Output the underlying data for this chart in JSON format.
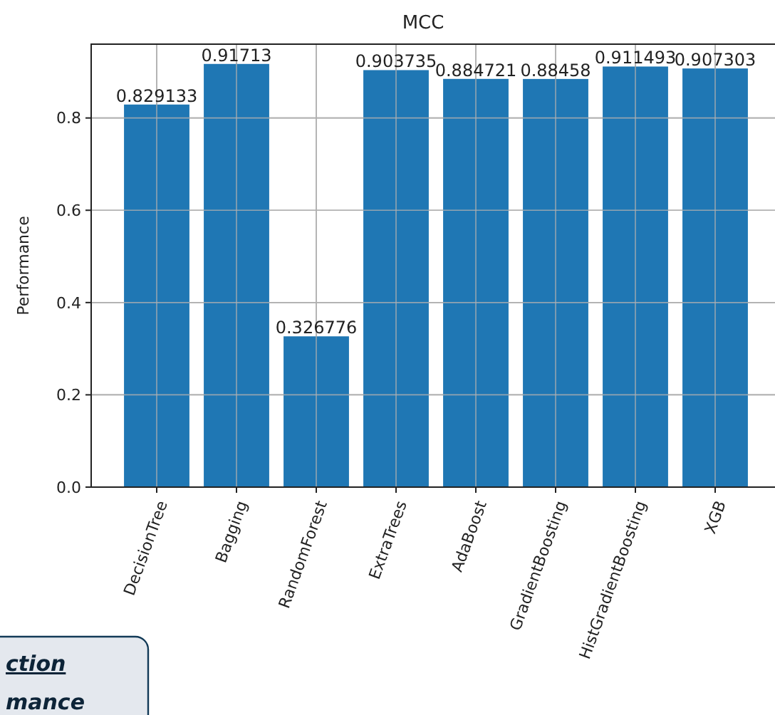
{
  "chart_data": {
    "type": "bar",
    "title": "MCC",
    "ylabel": "Performance",
    "categories": [
      "DecisionTree",
      "Bagging",
      "RandomForest",
      "ExtraTrees",
      "AdaBoost",
      "GradientBoosting",
      "HistGradientBoosting",
      "XGB"
    ],
    "values": [
      0.829133,
      0.91713,
      0.326776,
      0.903735,
      0.884721,
      0.88458,
      0.911493,
      0.907303
    ],
    "color": "#1f77b4",
    "data_labels": true,
    "grid": true,
    "ylim": [
      0,
      0.96
    ],
    "yticks": [
      {
        "value": 0,
        "label": "0.0"
      },
      {
        "value": 0.2,
        "label": "0.2"
      },
      {
        "value": 0.4,
        "label": "0.4"
      },
      {
        "value": 0.6,
        "label": "0.6"
      },
      {
        "value": 0.8,
        "label": "0.8"
      }
    ],
    "annotations": [
      "ction",
      "mance"
    ]
  }
}
